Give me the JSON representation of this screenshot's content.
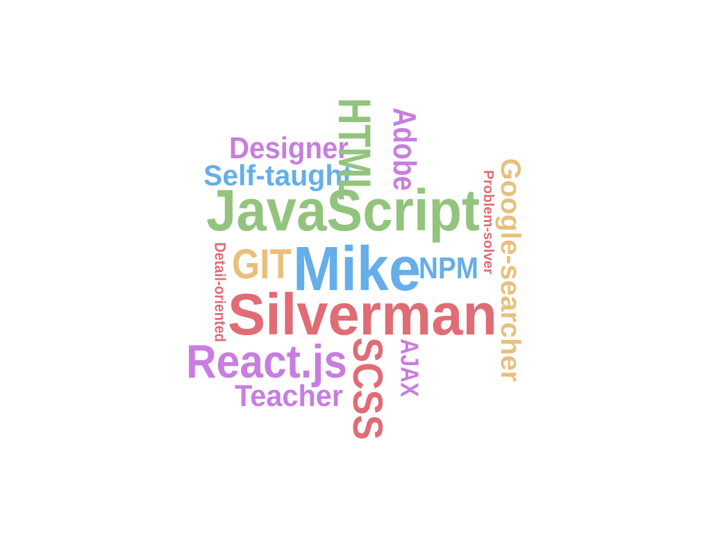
{
  "colors": {
    "green": "#93c47d",
    "blue": "#65aee9",
    "purple": "#c77ee0",
    "red": "#e06c75",
    "orange": "#e8c07d"
  },
  "words": [
    {
      "text": "Mike",
      "color": "#65aee9"
    },
    {
      "text": "Silverman",
      "color": "#e06c75"
    },
    {
      "text": "JavaScript",
      "color": "#93c47d"
    },
    {
      "text": "HTML",
      "color": "#93c47d"
    },
    {
      "text": "Adobe",
      "color": "#c77ee0"
    },
    {
      "text": "Designer",
      "color": "#c77ee0"
    },
    {
      "text": "Self-taught",
      "color": "#65aee9"
    },
    {
      "text": "GIT",
      "color": "#e8c07d"
    },
    {
      "text": "NPM",
      "color": "#65aee9"
    },
    {
      "text": "Detail-oriented",
      "color": "#e06c75"
    },
    {
      "text": "Problem-solver",
      "color": "#e06c75"
    },
    {
      "text": "Google-searcher",
      "color": "#e8c07d"
    },
    {
      "text": "React.js",
      "color": "#c77ee0"
    },
    {
      "text": "SCSS",
      "color": "#e06c75"
    },
    {
      "text": "AJAX",
      "color": "#c77ee0"
    },
    {
      "text": "Teacher",
      "color": "#c77ee0"
    }
  ]
}
